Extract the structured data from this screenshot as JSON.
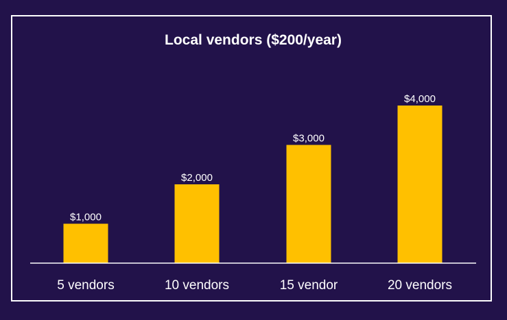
{
  "chart_data": {
    "type": "bar",
    "title": "Local vendors ($200/year)",
    "categories": [
      "5 vendors",
      "10 vendors",
      "15 vendor",
      "20 vendors"
    ],
    "values": [
      1000,
      2000,
      3000,
      4000
    ],
    "data_labels": [
      "$1,000",
      "$2,000",
      "$3,000",
      "$4,000"
    ],
    "xlabel": "",
    "ylabel": "",
    "ylim": [
      0,
      4500
    ],
    "grid": false,
    "legend": "none",
    "colors": {
      "background": "#22124a",
      "bar": "#ffc000",
      "text": "#ffffff",
      "axis": "#ffffff"
    }
  }
}
